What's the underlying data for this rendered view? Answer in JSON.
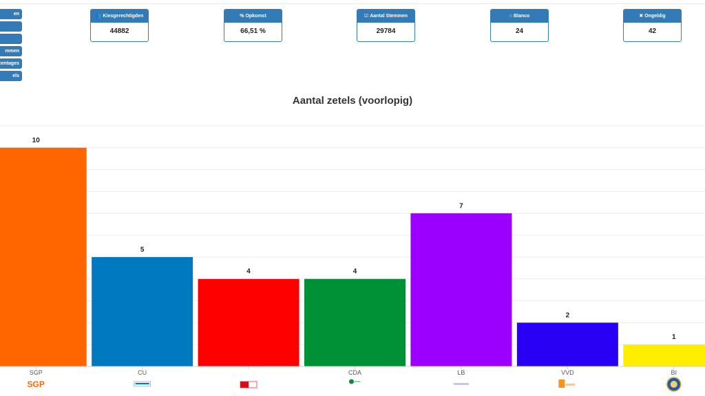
{
  "side_menu": [
    {
      "label": "en"
    },
    {
      "label": ""
    },
    {
      "label": ""
    },
    {
      "label": "mmen"
    },
    {
      "label": "centages"
    },
    {
      "label": "els"
    }
  ],
  "stats": [
    {
      "icon": "users-icon",
      "label": "Kiesgerechtigden",
      "value": "44882"
    },
    {
      "icon": "percent-icon",
      "label": "Opkomst",
      "value": "66,51 %"
    },
    {
      "icon": "check-square-icon",
      "label": "Aantal Stemmen",
      "value": "29784"
    },
    {
      "icon": "circle-icon",
      "label": "Blanco",
      "value": "24"
    },
    {
      "icon": "close-icon",
      "label": "Ongeldig",
      "value": "42"
    }
  ],
  "chart_data": {
    "type": "bar",
    "title": "Aantal zetels (voorlopig)",
    "categories": [
      "SGP",
      "CU",
      "",
      "CDA",
      "LB",
      "VVD",
      "BI"
    ],
    "values": [
      10,
      5,
      4,
      4,
      7,
      2,
      1
    ],
    "colors": [
      "#ff6600",
      "#0079c1",
      "#ff0000",
      "#009035",
      "#9b00ff",
      "#2a00f5",
      "#ffee00"
    ],
    "ylim": [
      0,
      11
    ],
    "grid": true,
    "data_labels": true,
    "legend": "none"
  }
}
